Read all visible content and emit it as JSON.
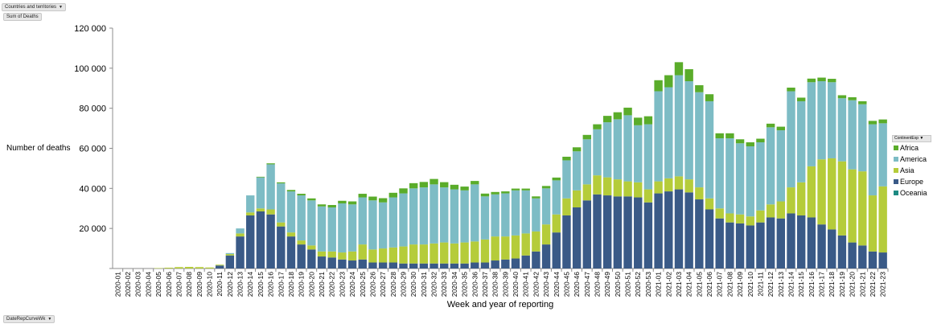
{
  "filters": {
    "top_filter_label": "Countries and territories",
    "value_field_label": "Sum of Deaths",
    "axis_field_label": "DateRepCurveWk",
    "legend_field_label": "ContinentExp"
  },
  "chart_data": {
    "type": "bar",
    "stacked": true,
    "title": "",
    "xlabel": "Week and year of reporting",
    "ylabel": "Number of deaths",
    "ylim": [
      0,
      120000
    ],
    "yticks": [
      0,
      20000,
      40000,
      60000,
      80000,
      100000,
      120000
    ],
    "ytick_labels": [
      "",
      "20 000",
      "40 000",
      "60 000",
      "80 000",
      "100 000",
      "120 000"
    ],
    "legend_position": "right",
    "categories": [
      "2020-01",
      "2020-02",
      "2020-03",
      "2020-04",
      "2020-05",
      "2020-06",
      "2020-07",
      "2020-08",
      "2020-09",
      "2020-10",
      "2020-11",
      "2020-12",
      "2020-13",
      "2020-14",
      "2020-15",
      "2020-16",
      "2020-17",
      "2020-18",
      "2020-19",
      "2020-20",
      "2020-21",
      "2020-22",
      "2020-23",
      "2020-24",
      "2020-25",
      "2020-26",
      "2020-27",
      "2020-28",
      "2020-29",
      "2020-30",
      "2020-31",
      "2020-32",
      "2020-33",
      "2020-34",
      "2020-35",
      "2020-36",
      "2020-37",
      "2020-38",
      "2020-39",
      "2020-40",
      "2020-41",
      "2020-42",
      "2020-43",
      "2020-44",
      "2020-45",
      "2020-46",
      "2020-47",
      "2020-48",
      "2020-49",
      "2020-50",
      "2020-51",
      "2020-52",
      "2020-53",
      "2021-01",
      "2021-02",
      "2021-03",
      "2021-04",
      "2021-05",
      "2021-06",
      "2021-07",
      "2021-08",
      "2021-09",
      "2021-10",
      "2021-11",
      "2021-12",
      "2021-13",
      "2021-14",
      "2021-15",
      "2021-16",
      "2021-17",
      "2021-18",
      "2021-19",
      "2021-20",
      "2021-21",
      "2021-22",
      "2021-23"
    ],
    "series": [
      {
        "name": "Europe",
        "color": "#3a5a87",
        "values": [
          0,
          0,
          0,
          0,
          0,
          0,
          0,
          0,
          0,
          0,
          1500,
          6500,
          16000,
          26500,
          28500,
          27000,
          21000,
          16000,
          12000,
          9500,
          6000,
          5500,
          4500,
          4000,
          4500,
          3000,
          3000,
          3000,
          2500,
          2500,
          2500,
          2500,
          2500,
          2500,
          2500,
          3000,
          3000,
          4000,
          4500,
          5000,
          6500,
          8500,
          12000,
          18000,
          26500,
          30500,
          34000,
          37000,
          36500,
          36000,
          36000,
          35500,
          33000,
          37500,
          38500,
          39500,
          38000,
          34500,
          29500,
          25000,
          23000,
          22500,
          21500,
          23000,
          25500,
          25000,
          27500,
          26500,
          25500,
          22000,
          19500,
          16500,
          13000,
          11500,
          8500,
          8000
        ]
      },
      {
        "name": "Asia",
        "color": "#b5cc3a",
        "values": [
          0,
          0,
          0,
          0,
          200,
          400,
          700,
          800,
          700,
          500,
          400,
          700,
          1500,
          1500,
          1500,
          2500,
          2000,
          2000,
          2000,
          2000,
          2500,
          3000,
          3500,
          4500,
          7500,
          6500,
          7000,
          7500,
          8500,
          9500,
          9500,
          10000,
          10500,
          10000,
          10500,
          10500,
          11500,
          12000,
          11500,
          11500,
          11000,
          10000,
          10000,
          9000,
          8500,
          8500,
          8000,
          9500,
          9000,
          8500,
          7500,
          7500,
          6500,
          6000,
          6500,
          6500,
          6500,
          6000,
          5500,
          5000,
          4500,
          4500,
          4500,
          6000,
          6500,
          8500,
          13000,
          16500,
          25500,
          32500,
          35500,
          37000,
          36500,
          37000,
          28000,
          33000
        ]
      },
      {
        "name": "America",
        "color": "#7dbcc5",
        "values": [
          0,
          0,
          0,
          0,
          0,
          0,
          0,
          0,
          0,
          0,
          0,
          500,
          2500,
          8500,
          15500,
          22500,
          19500,
          20500,
          22500,
          22500,
          22500,
          22000,
          24500,
          23500,
          23500,
          24500,
          23000,
          25000,
          26500,
          28000,
          28500,
          29500,
          27500,
          27000,
          26000,
          28500,
          21500,
          21000,
          21500,
          22500,
          21500,
          16500,
          18000,
          17000,
          19000,
          19500,
          22500,
          23000,
          27500,
          30000,
          33000,
          28500,
          32500,
          45000,
          45500,
          50500,
          49000,
          47500,
          48500,
          35000,
          37500,
          35500,
          35000,
          34000,
          38500,
          35500,
          48000,
          40500,
          42000,
          39000,
          38000,
          31500,
          34500,
          33500,
          35500,
          31500
        ]
      },
      {
        "name": "Africa",
        "color": "#5aac2a",
        "values": [
          0,
          0,
          0,
          0,
          0,
          0,
          0,
          0,
          0,
          0,
          0,
          0,
          0,
          0,
          300,
          500,
          500,
          700,
          800,
          1000,
          1000,
          1200,
          1300,
          1500,
          1800,
          1900,
          2100,
          2300,
          2500,
          2600,
          2700,
          2700,
          2600,
          2300,
          1900,
          1700,
          1400,
          1200,
          1000,
          900,
          900,
          1000,
          1200,
          1400,
          1800,
          2000,
          2200,
          2500,
          3200,
          3500,
          3800,
          3800,
          4000,
          5500,
          6000,
          6500,
          6000,
          3500,
          3500,
          2500,
          2500,
          2000,
          2000,
          1800,
          1800,
          1800,
          1800,
          1800,
          1800,
          1800,
          1700,
          1500,
          1500,
          1500,
          1700,
          1900
        ]
      },
      {
        "name": "Oceania",
        "color": "#1d8a82",
        "values": [
          0,
          0,
          0,
          0,
          0,
          0,
          0,
          0,
          0,
          0,
          0,
          0,
          0,
          0,
          0,
          0,
          0,
          0,
          0,
          0,
          0,
          0,
          0,
          0,
          0,
          0,
          0,
          0,
          0,
          0,
          0,
          0,
          0,
          0,
          0,
          0,
          0,
          0,
          0,
          0,
          0,
          0,
          0,
          0,
          0,
          0,
          0,
          0,
          0,
          0,
          0,
          0,
          0,
          0,
          0,
          0,
          0,
          0,
          0,
          0,
          0,
          0,
          0,
          0,
          0,
          0,
          0,
          0,
          0,
          0,
          0,
          0,
          0,
          0,
          0,
          0
        ]
      }
    ]
  }
}
